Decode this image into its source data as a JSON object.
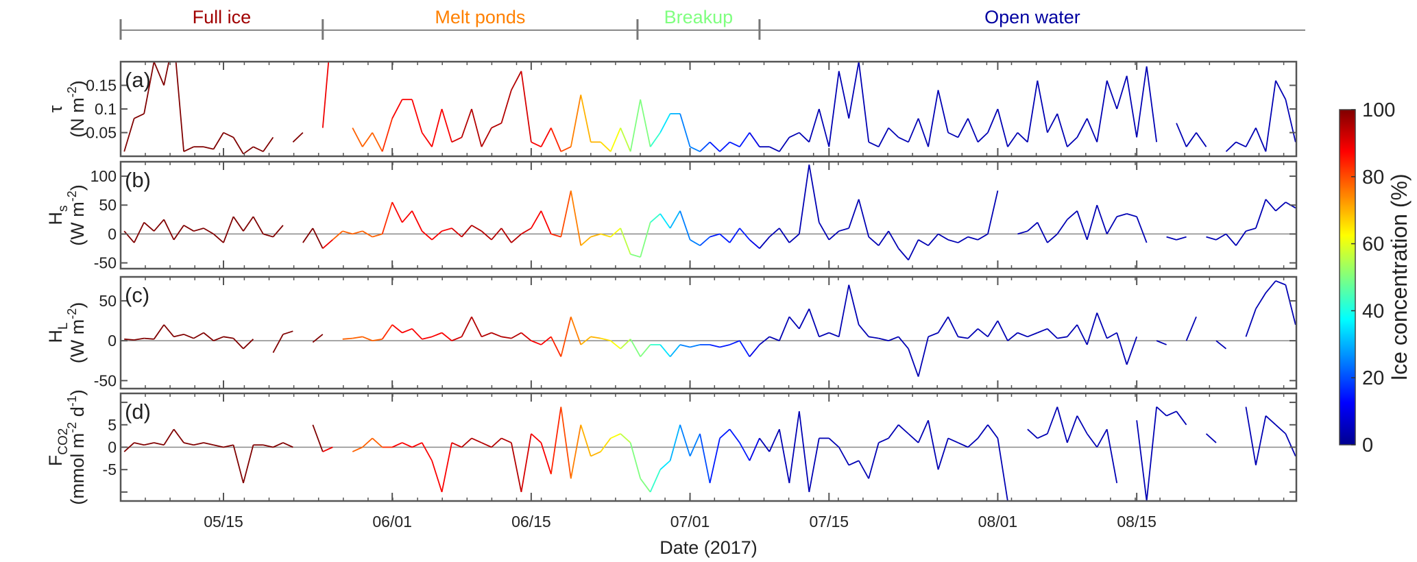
{
  "chart_data": {
    "type": "line",
    "xlabel": "Date (2017)",
    "x_ticks": [
      {
        "date": "05/15",
        "label": "05/15"
      },
      {
        "date": "06/01",
        "label": "06/01"
      },
      {
        "date": "06/15",
        "label": "06/15"
      },
      {
        "date": "07/01",
        "label": "07/01"
      },
      {
        "date": "07/15",
        "label": "07/15"
      },
      {
        "date": "08/01",
        "label": "08/01"
      },
      {
        "date": "08/15",
        "label": "08/15"
      }
    ],
    "xlim": [
      "05/04 15:00",
      "08/31 03:00"
    ],
    "phases": [
      {
        "label": "Full ice",
        "start": "05/04 15:00",
        "end": "05/25",
        "color": "#a00000"
      },
      {
        "label": "Melt ponds",
        "start": "05/25",
        "end": "06/25 17:00",
        "color": "#ff8000"
      },
      {
        "label": "Breakup",
        "start": "06/25 17:00",
        "end": "07/08",
        "color": "#80ff80"
      },
      {
        "label": "Open water",
        "start": "07/08",
        "end": "09/01",
        "color": "#0000a0"
      }
    ],
    "colorbar": {
      "label": "Ice concentration (%)",
      "colormap": "jet",
      "range": [
        0,
        100
      ],
      "ticks": [
        "0",
        "20",
        "40",
        "60",
        "80",
        "100"
      ]
    },
    "dates": [
      "05/05",
      "05/06",
      "05/07",
      "05/08",
      "05/09",
      "05/10",
      "05/11",
      "05/12",
      "05/13",
      "05/14",
      "05/15",
      "05/16",
      "05/17",
      "05/18",
      "05/19",
      "05/20",
      "05/21",
      "05/22",
      "05/23",
      "05/24",
      "05/25",
      "05/26",
      "05/27",
      "05/28",
      "05/29",
      "05/30",
      "05/31",
      "06/01",
      "06/02",
      "06/03",
      "06/04",
      "06/05",
      "06/06",
      "06/07",
      "06/08",
      "06/09",
      "06/10",
      "06/11",
      "06/12",
      "06/13",
      "06/14",
      "06/15",
      "06/16",
      "06/17",
      "06/18",
      "06/19",
      "06/20",
      "06/21",
      "06/22",
      "06/23",
      "06/24",
      "06/25",
      "06/26",
      "06/27",
      "06/28",
      "06/29",
      "06/30",
      "07/01",
      "07/02",
      "07/03",
      "07/04",
      "07/05",
      "07/06",
      "07/07",
      "07/08",
      "07/09",
      "07/10",
      "07/11",
      "07/12",
      "07/13",
      "07/14",
      "07/15",
      "07/16",
      "07/17",
      "07/18",
      "07/19",
      "07/20",
      "07/21",
      "07/22",
      "07/23",
      "07/24",
      "07/25",
      "07/26",
      "07/27",
      "07/28",
      "07/29",
      "07/30",
      "07/31",
      "08/01",
      "08/02",
      "08/03",
      "08/04",
      "08/05",
      "08/06",
      "08/07",
      "08/08",
      "08/09",
      "08/10",
      "08/11",
      "08/12",
      "08/13",
      "08/14",
      "08/15",
      "08/16",
      "08/17",
      "08/18",
      "08/19",
      "08/20",
      "08/21",
      "08/22",
      "08/23",
      "08/24",
      "08/25",
      "08/26",
      "08/27",
      "08/28",
      "08/29",
      "08/30",
      "08/31"
    ],
    "ice_concentration": [
      100,
      100,
      100,
      100,
      100,
      100,
      100,
      100,
      100,
      100,
      100,
      100,
      100,
      100,
      100,
      100,
      100,
      100,
      100,
      100,
      100,
      78,
      78,
      78,
      78,
      78,
      78,
      88,
      88,
      88,
      88,
      88,
      88,
      88,
      95,
      95,
      95,
      95,
      95,
      95,
      95,
      88,
      88,
      88,
      80,
      80,
      70,
      70,
      70,
      62,
      62,
      50,
      50,
      50,
      35,
      35,
      25,
      25,
      25,
      15,
      15,
      15,
      15,
      15,
      5,
      5,
      5,
      5,
      5,
      5,
      5,
      5,
      5,
      5,
      5,
      5,
      5,
      5,
      5,
      5,
      5,
      5,
      5,
      5,
      5,
      5,
      5,
      5,
      5,
      5,
      5,
      5,
      5,
      5,
      5,
      5,
      5,
      5,
      5,
      5,
      5,
      5,
      5,
      5,
      5,
      5,
      5,
      5,
      5,
      5,
      5,
      5,
      5,
      5,
      5,
      5,
      5,
      5,
      5
    ],
    "panels": [
      {
        "letter": "(a)",
        "ylabel": {
          "main": "τ",
          "sub": "",
          "units": [
            {
              "t": "(N m"
            },
            {
              "t": "-2",
              "sup": true
            },
            {
              "t": ")"
            }
          ]
        },
        "ylim": [
          0,
          0.2
        ],
        "yticks": [
          {
            "v": 0.05,
            "label": "0.05"
          },
          {
            "v": 0.1,
            "label": "0.1"
          },
          {
            "v": 0.15,
            "label": "0.15"
          }
        ],
        "zero_line": false,
        "values": [
          0.01,
          0.08,
          0.09,
          0.2,
          0.15,
          0.25,
          0.01,
          0.02,
          0.02,
          0.015,
          0.05,
          0.04,
          0.005,
          0.02,
          0.01,
          0.04,
          null,
          0.03,
          0.05,
          null,
          0.06,
          0.3,
          null,
          0.06,
          0.02,
          0.05,
          0.01,
          0.08,
          0.12,
          0.12,
          0.05,
          0.02,
          0.1,
          0.03,
          0.04,
          0.1,
          0.02,
          0.06,
          0.07,
          0.14,
          0.18,
          0.03,
          0.02,
          0.06,
          0.01,
          0.02,
          0.13,
          0.03,
          0.03,
          0.01,
          0.06,
          0.01,
          0.12,
          0.02,
          0.05,
          0.09,
          0.09,
          0.02,
          0.01,
          0.03,
          0.01,
          0.03,
          0.02,
          0.05,
          0.02,
          0.02,
          0.01,
          0.04,
          0.05,
          0.03,
          0.1,
          0.02,
          0.18,
          0.08,
          0.2,
          0.03,
          0.02,
          0.06,
          0.04,
          0.03,
          0.08,
          0.02,
          0.14,
          0.05,
          0.04,
          0.08,
          0.03,
          0.05,
          0.1,
          0.02,
          0.05,
          0.03,
          0.16,
          0.05,
          0.09,
          0.02,
          0.04,
          0.08,
          0.03,
          0.16,
          0.1,
          0.17,
          0.04,
          0.19,
          0.03,
          null,
          0.07,
          0.02,
          0.05,
          0.02,
          null,
          0.01,
          0.03,
          0.02,
          0.06,
          0.01,
          0.16,
          0.12,
          0.03
        ]
      },
      {
        "letter": "(b)",
        "ylabel": {
          "main": "H",
          "sub": "s",
          "units": [
            {
              "t": "(W m"
            },
            {
              "t": "-2",
              "sup": true
            },
            {
              "t": ")"
            }
          ]
        },
        "ylim": [
          -60,
          125
        ],
        "yticks": [
          {
            "v": -50,
            "label": "-50"
          },
          {
            "v": 0,
            "label": "0"
          },
          {
            "v": 50,
            "label": "50"
          },
          {
            "v": 100,
            "label": "100"
          }
        ],
        "zero_line": true,
        "values": [
          5,
          -15,
          20,
          5,
          25,
          -10,
          15,
          5,
          10,
          0,
          -15,
          30,
          5,
          30,
          0,
          -5,
          15,
          null,
          -15,
          10,
          -25,
          -10,
          5,
          0,
          5,
          -5,
          0,
          55,
          20,
          40,
          5,
          -10,
          5,
          10,
          -5,
          15,
          5,
          -10,
          10,
          -15,
          0,
          10,
          40,
          0,
          -5,
          75,
          -20,
          -5,
          0,
          -5,
          10,
          -35,
          -40,
          20,
          35,
          10,
          40,
          -10,
          -20,
          -5,
          0,
          -15,
          10,
          -10,
          -25,
          -5,
          10,
          -15,
          0,
          120,
          20,
          -10,
          5,
          10,
          60,
          -5,
          -20,
          5,
          -25,
          -45,
          -10,
          -20,
          0,
          -10,
          -15,
          -5,
          -10,
          0,
          75,
          null,
          0,
          5,
          20,
          -15,
          0,
          25,
          40,
          -10,
          50,
          0,
          30,
          35,
          30,
          -15,
          null,
          -5,
          -10,
          -5,
          null,
          -5,
          -10,
          0,
          -20,
          5,
          10,
          60,
          40,
          55,
          45
        ]
      },
      {
        "letter": "(c)",
        "ylabel": {
          "main": "H",
          "sub": "L",
          "units": [
            {
              "t": "(W m"
            },
            {
              "t": "-2",
              "sup": true
            },
            {
              "t": ")"
            }
          ]
        },
        "ylim": [
          -60,
          80
        ],
        "yticks": [
          {
            "v": -50,
            "label": "-50"
          },
          {
            "v": 0,
            "label": "0"
          },
          {
            "v": 50,
            "label": "50"
          }
        ],
        "zero_line": true,
        "values": [
          2,
          1,
          3,
          2,
          20,
          5,
          8,
          3,
          10,
          0,
          5,
          3,
          -10,
          2,
          null,
          -15,
          8,
          12,
          null,
          -2,
          8,
          null,
          2,
          3,
          5,
          0,
          2,
          20,
          10,
          15,
          2,
          5,
          10,
          0,
          5,
          30,
          5,
          10,
          5,
          3,
          10,
          0,
          -5,
          5,
          -20,
          30,
          -5,
          5,
          3,
          0,
          -10,
          2,
          -20,
          -5,
          -5,
          -20,
          -5,
          -8,
          -5,
          -5,
          -8,
          -5,
          0,
          -20,
          -5,
          5,
          0,
          30,
          15,
          40,
          5,
          10,
          5,
          70,
          20,
          5,
          3,
          0,
          5,
          -10,
          -45,
          5,
          10,
          30,
          5,
          3,
          15,
          5,
          25,
          0,
          10,
          5,
          10,
          15,
          3,
          5,
          20,
          -5,
          35,
          3,
          10,
          -30,
          5,
          null,
          0,
          -5,
          null,
          0,
          30,
          null,
          0,
          -10,
          null,
          5,
          40,
          60,
          75,
          70,
          20
        ]
      },
      {
        "letter": "(d)",
        "ylabel": {
          "main": "F",
          "sub": "CO2",
          "units": [
            {
              "t": "(mmol m"
            },
            {
              "t": "-2",
              "sup": true
            },
            {
              "t": " d"
            },
            {
              "t": "-1",
              "sup": true
            },
            {
              "t": ")"
            }
          ]
        },
        "ylim": [
          -12,
          12
        ],
        "yticks": [
          {
            "v": -10,
            "label": ""
          },
          {
            "v": -5,
            "label": "-5"
          },
          {
            "v": 0,
            "label": "0"
          },
          {
            "v": 5,
            "label": "5"
          },
          {
            "v": 10,
            "label": ""
          }
        ],
        "zero_line": true,
        "values": [
          -1,
          1,
          0.5,
          1,
          0.5,
          4,
          1,
          0.5,
          1,
          0.5,
          0,
          0.5,
          -8,
          0.5,
          0.5,
          0,
          1,
          0,
          null,
          5,
          -1,
          0,
          null,
          -1,
          0,
          2,
          0,
          0,
          1,
          0,
          1,
          -3,
          -10,
          1,
          0,
          2,
          1,
          0,
          2,
          1,
          -10,
          3,
          1,
          -6,
          9,
          -7,
          5,
          -2,
          -1,
          2,
          3,
          1,
          -7,
          -10,
          -5,
          -3,
          5,
          -2,
          3,
          -8,
          2,
          4,
          1,
          -3,
          2,
          -1,
          4,
          -8,
          8,
          -10,
          2,
          2,
          0,
          -4,
          -3,
          -7,
          1,
          2,
          5,
          3,
          1,
          6,
          -5,
          2,
          1,
          0,
          2,
          5,
          2,
          -12,
          null,
          4,
          2,
          3,
          9,
          1,
          7,
          3,
          0,
          4,
          -8,
          null,
          6,
          -12,
          9,
          7,
          8,
          5,
          null,
          3,
          1,
          null,
          null,
          9,
          -4,
          7,
          5,
          3,
          -2
        ]
      }
    ]
  }
}
